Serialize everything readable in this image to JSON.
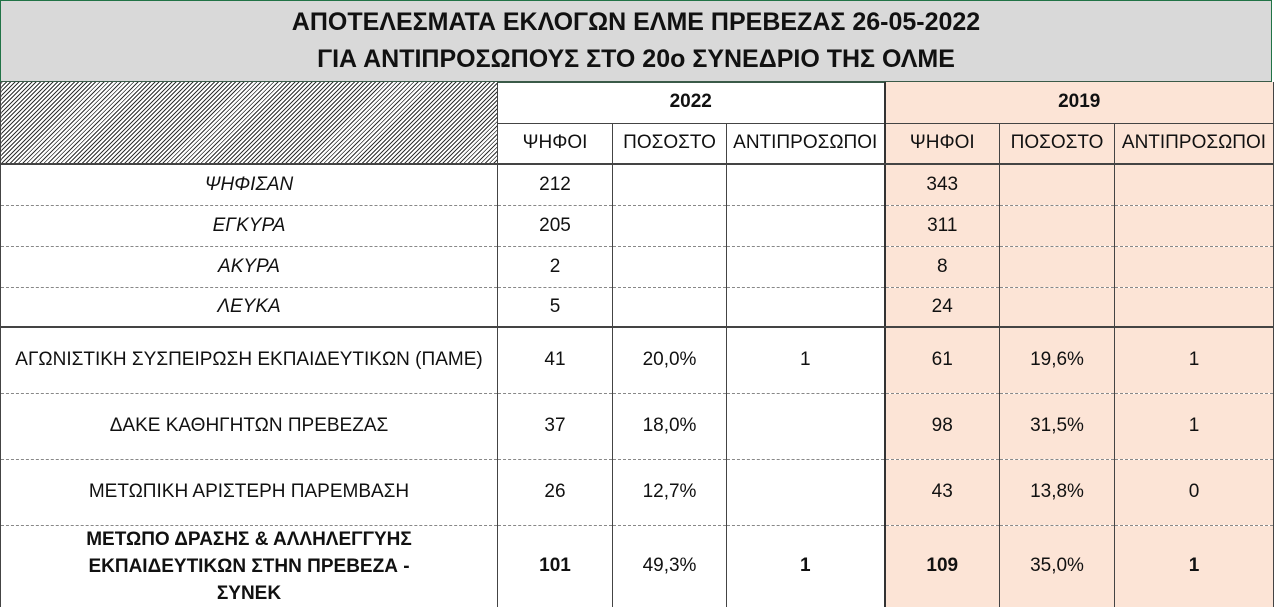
{
  "title": {
    "line1": "ΑΠΟΤΕΛΕΣΜΑΤΑ ΕΚΛΟΓΩΝ ΕΛΜΕ ΠΡΕΒΕΖΑΣ 26-05-2022",
    "line2": "ΓΙΑ ΑΝΤΙΠΡΟΣΩΠΟΥΣ ΣΤΟ 20ο ΣΥΝΕΔΡΙΟ ΤΗΣ ΟΛΜΕ"
  },
  "years": [
    "2022",
    "2019"
  ],
  "columns": [
    "ΨΗΦΟΙ",
    "ΠΟΣΟΣΤΟ",
    "ΑΝΤΙΠΡΟΣΩΠΟΙ",
    "ΨΗΦΟΙ",
    "ΠΟΣΟΣΤΟ",
    "ΑΝΤΙΠΡΟΣΩΠΟΙ"
  ],
  "summary": [
    {
      "label": "ΨΗΦΙΣΑΝ",
      "v2022": "212",
      "v2019": "343"
    },
    {
      "label": "ΕΓΚΥΡΑ",
      "v2022": "205",
      "v2019": "311"
    },
    {
      "label": "ΑΚΥΡΑ",
      "v2022": "2",
      "v2019": "8"
    },
    {
      "label": "ΛΕΥΚΑ",
      "v2022": "5",
      "v2019": "24"
    }
  ],
  "parties": [
    {
      "name": "ΑΓΩΝΙΣΤΙΚΗ ΣΥΣΠΕΙΡΩΣΗ ΕΚΠΑΙΔΕΥΤΙΚΩΝ (ΠΑΜΕ)",
      "v2022": "41",
      "p2022": "20,0%",
      "r2022": "1",
      "v2019": "61",
      "p2019": "19,6%",
      "r2019": "1"
    },
    {
      "name": "ΔΑΚΕ ΚΑΘΗΓΗΤΩΝ ΠΡΕΒΕΖΑΣ",
      "v2022": "37",
      "p2022": "18,0%",
      "r2022": "",
      "v2019": "98",
      "p2019": "31,5%",
      "r2019": "1"
    },
    {
      "name": "ΜΕΤΩΠΙΚΗ ΑΡΙΣΤΕΡΗ ΠΑΡΕΜΒΑΣΗ",
      "v2022": "26",
      "p2022": "12,7%",
      "r2022": "",
      "v2019": "43",
      "p2019": "13,8%",
      "r2019": "0"
    },
    {
      "name": "ΜΕΤΩΠΟ ΔΡΑΣΗΣ & ΑΛΛΗΛΕΓΓΥΗΣ ΕΚΠΑΙΔΕΥΤΙΚΩΝ ΣΤΗΝ ΠΡΕΒΕΖΑ - ΣΥΝΕΚ",
      "v2022": "101",
      "p2022": "49,3%",
      "r2022": "1",
      "v2019": "109",
      "p2019": "35,0%",
      "r2019": "1"
    }
  ],
  "colors": {
    "title_bg": "#d9d9d9",
    "col2019_bg": "#fce4d6",
    "title_border": "#217346"
  }
}
